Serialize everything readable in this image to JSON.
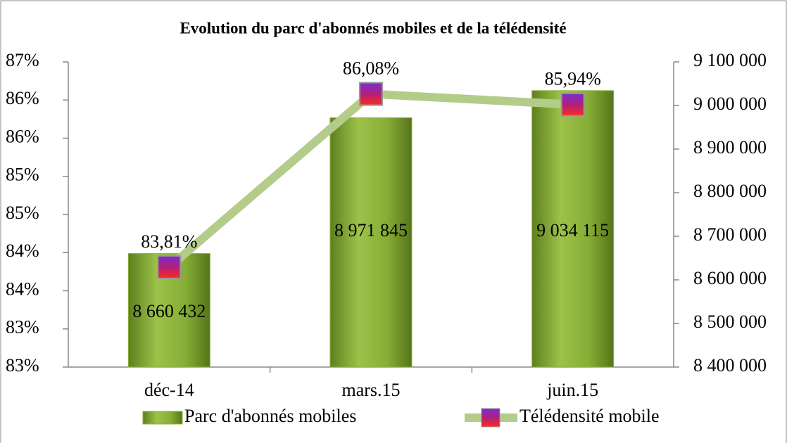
{
  "chart_data": {
    "type": "bar-line",
    "title": "Evolution du parc d'abonnés mobiles et de la télédensité",
    "categories": [
      "déc-14",
      "mars.15",
      "juin.15"
    ],
    "series": [
      {
        "name": "Parc d'abonnés mobiles",
        "type": "bar",
        "axis": "y2",
        "color": "#8db33a",
        "values": [
          8660432,
          8971845,
          9034115
        ],
        "value_labels": [
          "8 660 432",
          "8 971 845",
          "9 034 115"
        ]
      },
      {
        "name": "Télédensité mobile",
        "type": "line",
        "axis": "y",
        "color": "#b3cc8a",
        "marker_color": "#8b1fb5",
        "values": [
          83.81,
          86.08,
          85.94
        ],
        "value_labels": [
          "83,81%",
          "86,08%",
          "85,94%"
        ]
      }
    ],
    "ylim": [
      82.5,
      86.5
    ],
    "yticks": [
      {
        "value": 82.5,
        "label": "83%"
      },
      {
        "value": 83,
        "label": "83%"
      },
      {
        "value": 83.5,
        "label": "84%"
      },
      {
        "value": 84,
        "label": "84%"
      },
      {
        "value": 84.5,
        "label": "85%"
      },
      {
        "value": 85,
        "label": "85%"
      },
      {
        "value": 85.5,
        "label": "86%"
      },
      {
        "value": 86,
        "label": "86%"
      },
      {
        "value": 86.5,
        "label": "87%"
      }
    ],
    "y2lim": [
      8400000,
      9100000
    ],
    "y2ticks": [
      {
        "value": 8400000,
        "label": "8 400 000"
      },
      {
        "value": 8500000,
        "label": "8 500 000"
      },
      {
        "value": 8600000,
        "label": "8 600 000"
      },
      {
        "value": 8700000,
        "label": "8 700 000"
      },
      {
        "value": 8800000,
        "label": "8 800 000"
      },
      {
        "value": 8900000,
        "label": "8 900 000"
      },
      {
        "value": 9000000,
        "label": "9 000 000"
      },
      {
        "value": 9100000,
        "label": "9 100 000"
      }
    ],
    "grid": false,
    "legend": "bottom"
  }
}
